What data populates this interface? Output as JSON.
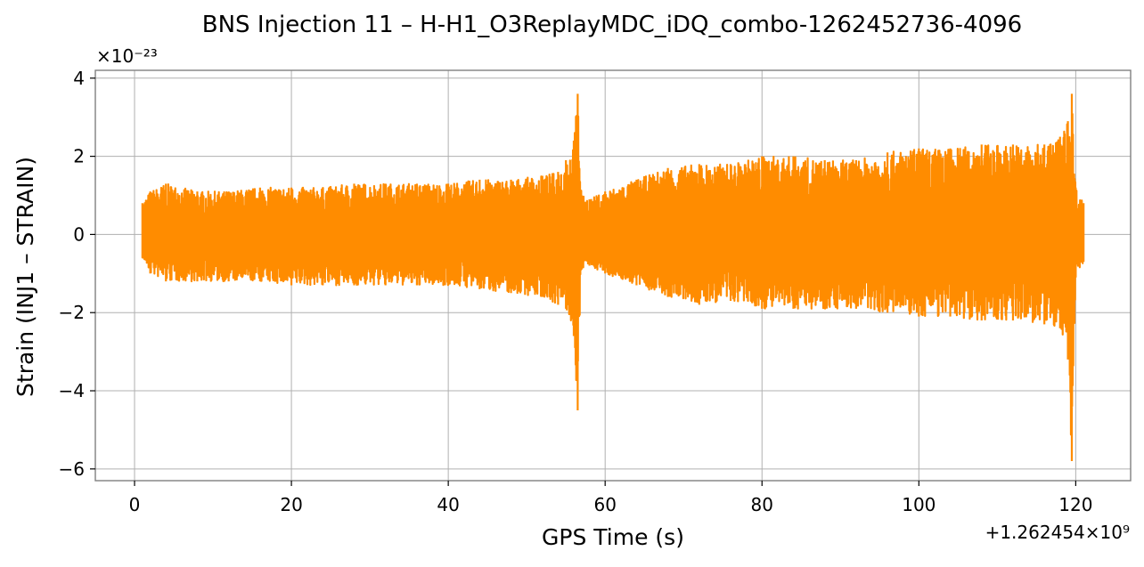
{
  "chart_data": {
    "type": "line",
    "title": "BNS Injection 11 – H-H1_O3ReplayMDC_iDQ_combo-1262452736-4096",
    "xlabel": "GPS Time (s)",
    "ylabel": "Strain (INJ1 – STRAIN)",
    "x_offset_text": "+1.262454×10⁹",
    "y_scale_text": "×10⁻²³",
    "xlim": [
      -5,
      127
    ],
    "ylim": [
      -6.3,
      4.2
    ],
    "x_ticks": [
      0,
      20,
      40,
      60,
      80,
      100,
      120
    ],
    "y_ticks": [
      -6,
      -4,
      -2,
      0,
      2,
      4
    ],
    "x_tick_labels": [
      "0",
      "20",
      "40",
      "60",
      "80",
      "100",
      "120"
    ],
    "y_tick_labels": [
      "−6",
      "−4",
      "−2",
      "0",
      "2",
      "4"
    ],
    "grid": true,
    "line_color": "#ff8c00",
    "series": [
      {
        "values_note_free": true,
        "x": [
          1.0,
          2.0,
          4.0,
          8.0,
          12.0,
          16.0,
          20.0,
          24.0,
          28.0,
          32.0,
          36.0,
          40.0,
          44.0,
          48.0,
          52.0,
          54.0,
          55.0,
          56.0,
          56.5,
          57.0,
          58.0,
          60.0,
          64.0,
          68.0,
          72.0,
          76.0,
          80.0,
          84.0,
          88.0,
          92.0,
          96.0,
          100.0,
          104.0,
          108.0,
          112.0,
          116.0,
          118.0,
          119.0,
          119.5,
          120.0,
          121.0
        ],
        "envelope_upper": [
          0.8,
          1.1,
          1.3,
          1.1,
          1.1,
          1.2,
          1.2,
          1.2,
          1.3,
          1.3,
          1.3,
          1.3,
          1.4,
          1.4,
          1.5,
          1.6,
          1.9,
          2.4,
          3.6,
          1.0,
          0.9,
          1.1,
          1.4,
          1.7,
          1.8,
          1.8,
          2.0,
          2.0,
          1.9,
          1.9,
          2.1,
          2.2,
          2.2,
          2.3,
          2.3,
          2.3,
          2.5,
          2.9,
          3.6,
          1.2,
          0.8
        ],
        "envelope_lower": [
          -0.6,
          -1.0,
          -1.2,
          -1.2,
          -1.2,
          -1.2,
          -1.3,
          -1.3,
          -1.3,
          -1.3,
          -1.3,
          -1.3,
          -1.4,
          -1.5,
          -1.6,
          -1.8,
          -1.9,
          -2.6,
          -4.5,
          -0.9,
          -0.8,
          -1.0,
          -1.3,
          -1.6,
          -1.8,
          -1.7,
          -1.9,
          -1.9,
          -1.9,
          -1.9,
          -2.0,
          -2.1,
          -2.1,
          -2.2,
          -2.2,
          -2.3,
          -2.4,
          -3.2,
          -5.8,
          -1.1,
          -0.7
        ]
      }
    ]
  }
}
